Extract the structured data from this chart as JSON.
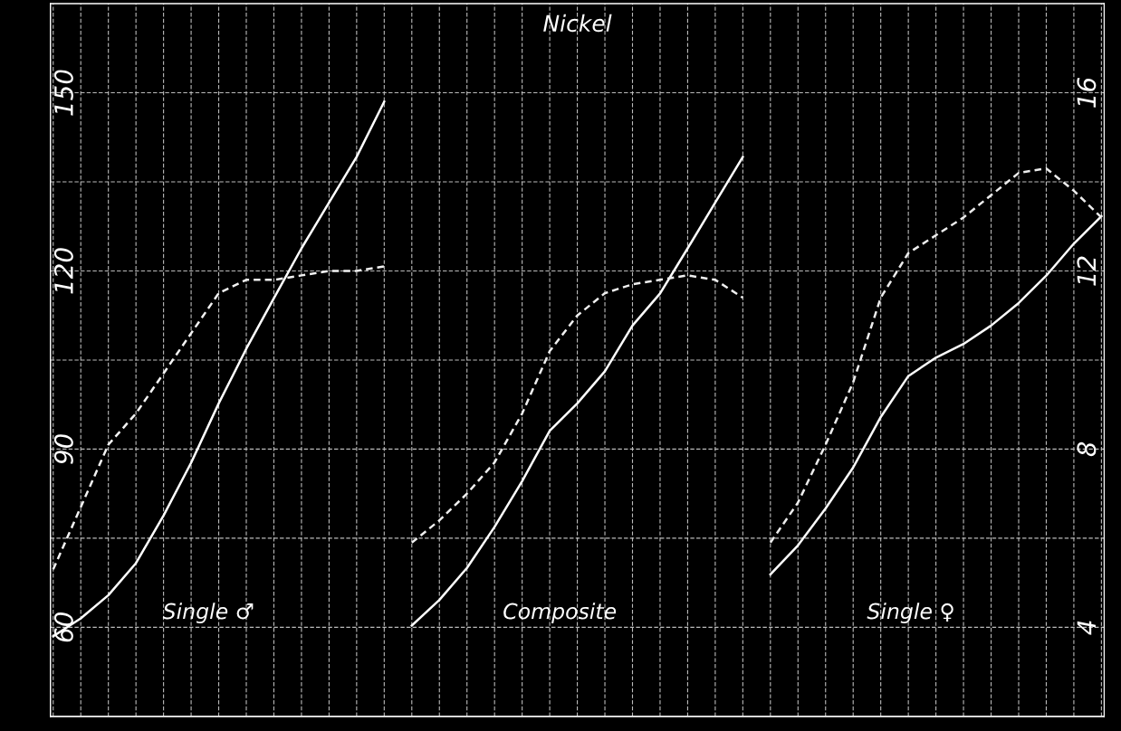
{
  "chart_data": {
    "type": "line",
    "title": "Nickel",
    "categories": [
      null,
      null,
      null,
      null,
      null,
      null,
      null,
      null,
      null,
      null,
      null,
      null,
      null,
      null,
      null,
      null,
      null,
      null,
      null,
      null,
      null,
      null,
      null,
      null,
      null,
      null,
      null,
      null,
      null,
      null,
      null,
      null,
      null,
      null,
      null,
      null,
      null,
      null,
      null
    ],
    "series": [
      {
        "color": "#ffffff",
        "line_style": "solid",
        "values": [
          58.5,
          61.5,
          65.4,
          70.8,
          78.8,
          87.7,
          97.7,
          106.9,
          115.4,
          123.8,
          131.5,
          139.2,
          148.5,
          null,
          null,
          null,
          null,
          null,
          null,
          null,
          null,
          null,
          null,
          null,
          null,
          null,
          null,
          null,
          null,
          null,
          null,
          null,
          null,
          null,
          null,
          null,
          null,
          null,
          null
        ]
      },
      {
        "color": "#f2f2f2",
        "line_style": "dashed",
        "axis": "y2",
        "values": [
          5.3,
          6.7,
          8.1,
          8.8,
          9.7,
          10.6,
          11.5,
          11.8,
          11.8,
          11.9,
          12.0,
          12.0,
          12.1,
          null,
          null,
          null,
          null,
          null,
          null,
          null,
          null,
          null,
          null,
          null,
          null,
          null,
          null,
          null,
          null,
          null,
          null,
          null,
          null,
          null,
          null,
          null,
          null,
          null,
          null
        ]
      },
      {
        "color": "#fdfdfd",
        "line_style": "solid",
        "values": [
          null,
          null,
          null,
          null,
          null,
          null,
          null,
          null,
          null,
          null,
          null,
          null,
          null,
          60.3,
          64.6,
          70.0,
          76.9,
          84.6,
          93.1,
          97.7,
          103.1,
          110.8,
          116.2,
          123.8,
          131.5,
          139.2,
          null,
          null,
          null,
          null,
          null,
          null,
          null,
          null,
          null,
          null,
          null,
          null,
          null
        ]
      },
      {
        "color": "#efefef",
        "line_style": "dashed",
        "axis": "y2",
        "values": [
          null,
          null,
          null,
          null,
          null,
          null,
          null,
          null,
          null,
          null,
          null,
          null,
          null,
          5.9,
          6.4,
          7.0,
          7.7,
          8.8,
          10.2,
          11.0,
          11.5,
          11.7,
          11.8,
          11.9,
          11.8,
          11.4,
          null,
          null,
          null,
          null,
          null,
          null,
          null,
          null,
          null,
          null,
          null,
          null,
          null
        ]
      },
      {
        "color": "#fafafa",
        "line_style": "solid",
        "values": [
          null,
          null,
          null,
          null,
          null,
          null,
          null,
          null,
          null,
          null,
          null,
          null,
          null,
          null,
          null,
          null,
          null,
          null,
          null,
          null,
          null,
          null,
          null,
          null,
          null,
          null,
          68.9,
          73.8,
          80.0,
          86.9,
          95.4,
          102.3,
          105.4,
          107.7,
          110.8,
          114.6,
          119.2,
          124.6,
          129.2
        ]
      },
      {
        "color": "#ececec",
        "line_style": "dashed",
        "axis": "y2",
        "values": [
          null,
          null,
          null,
          null,
          null,
          null,
          null,
          null,
          null,
          null,
          null,
          null,
          null,
          null,
          null,
          null,
          null,
          null,
          null,
          null,
          null,
          null,
          null,
          null,
          null,
          null,
          5.9,
          6.8,
          8.1,
          9.5,
          11.4,
          12.4,
          12.8,
          13.2,
          13.7,
          14.2,
          14.3,
          13.8,
          13.2
        ]
      }
    ],
    "ylim": [
      45,
      165
    ],
    "yticks": [
      60,
      {
        "value": 75,
        "label": null
      },
      90,
      {
        "value": 105,
        "label": null
      },
      120,
      {
        "value": 135,
        "label": null
      },
      150
    ],
    "y2lim": [
      2,
      18
    ],
    "y2ticks": [
      4,
      8,
      12,
      16
    ],
    "grid": true,
    "annotations": [
      "Single ♂",
      "Composite",
      "Single ♀"
    ]
  }
}
